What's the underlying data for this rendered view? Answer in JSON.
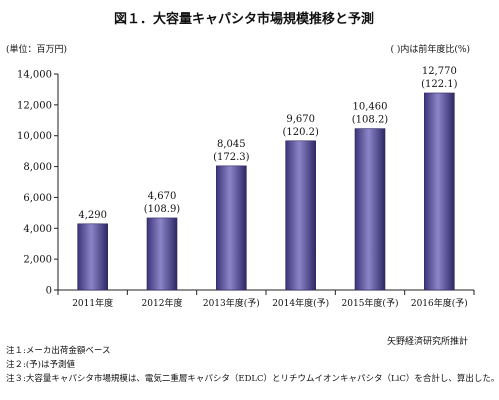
{
  "chart_data": {
    "type": "bar",
    "title": "図１．大容量キャパシタ市場規模推移と予測",
    "ylabel": "(単位：百万円)",
    "legend_note": "(   )内は前年度比(%)",
    "categories": [
      "2011年度",
      "2012年度",
      "2013年度(予)",
      "2014年度(予)",
      "2015年度(予)",
      "2016年度(予)"
    ],
    "values": [
      4290,
      4670,
      8045,
      9670,
      10460,
      12770
    ],
    "value_labels": [
      "4,290",
      "4,670",
      "8,045",
      "9,670",
      "10,460",
      "12,770"
    ],
    "growth_labels": [
      "",
      "(108.9)",
      "(172.3)",
      "(120.2)",
      "(108.2)",
      "(122.1)"
    ],
    "ylim": [
      0,
      14000
    ],
    "yticks": [
      "0",
      "2,000",
      "4,000",
      "6,000",
      "8,000",
      "10,000",
      "12,000",
      "14,000"
    ],
    "grid": false,
    "bar_colors": {
      "left": "#3c3478",
      "mid": "#8b86c8",
      "right": "#2e2866"
    }
  },
  "source": "矢野経済研究所推計",
  "notes": [
    "注１:メーカ出荷金額ベース",
    "注２:(予)は予測値",
    "注３:大容量キャパシタ市場規模は、電気二重層キャパシタ（EDLC）とリチウムイオンキャパシタ（LiC）を合計し、算出した。"
  ]
}
